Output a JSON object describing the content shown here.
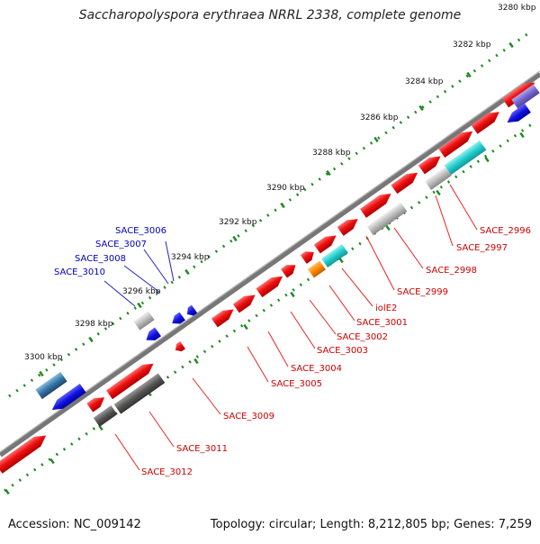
{
  "title": "Saccharopolyspora erythraea NRRL 2338, complete genome",
  "footer": {
    "accession": "Accession: NC_009142",
    "summary": "Topology: circular; Length: 8,212,805 bp; Genes: 7,259"
  },
  "colors": {
    "forward_gene": "#ee1111",
    "gray_gene": "#bbbbbb",
    "dark_gray_gene": "#555555",
    "cyan_gene": "#22cccc",
    "orange_gene": "#ff8800",
    "blue_gene": "#1111dd",
    "steel_gene": "#3377aa",
    "label_red": "#cc0000",
    "label_blue": "#0000bb",
    "tick_green": "#228822"
  },
  "ruler": [
    {
      "label": "3280 kbp"
    },
    {
      "label": "3282 kbp"
    },
    {
      "label": "3284 kbp"
    },
    {
      "label": "3286 kbp"
    },
    {
      "label": "3288 kbp"
    },
    {
      "label": "3290 kbp"
    },
    {
      "label": "3292 kbp"
    },
    {
      "label": "3294 kbp"
    },
    {
      "label": "3296 kbp"
    },
    {
      "label": "3298 kbp"
    },
    {
      "label": "3300 kbp"
    }
  ],
  "gene_labels_outer": [
    "SACE_3006",
    "SACE_3007",
    "SACE_3008",
    "SACE_3010"
  ],
  "gene_labels_inner": [
    "SACE_2996",
    "SACE_2997",
    "SACE_2998",
    "SACE_2999",
    "iolE2",
    "SACE_3001",
    "SACE_3002",
    "SACE_3003",
    "SACE_3004",
    "SACE_3005",
    "SACE_3009",
    "SACE_3011",
    "SACE_3012"
  ]
}
